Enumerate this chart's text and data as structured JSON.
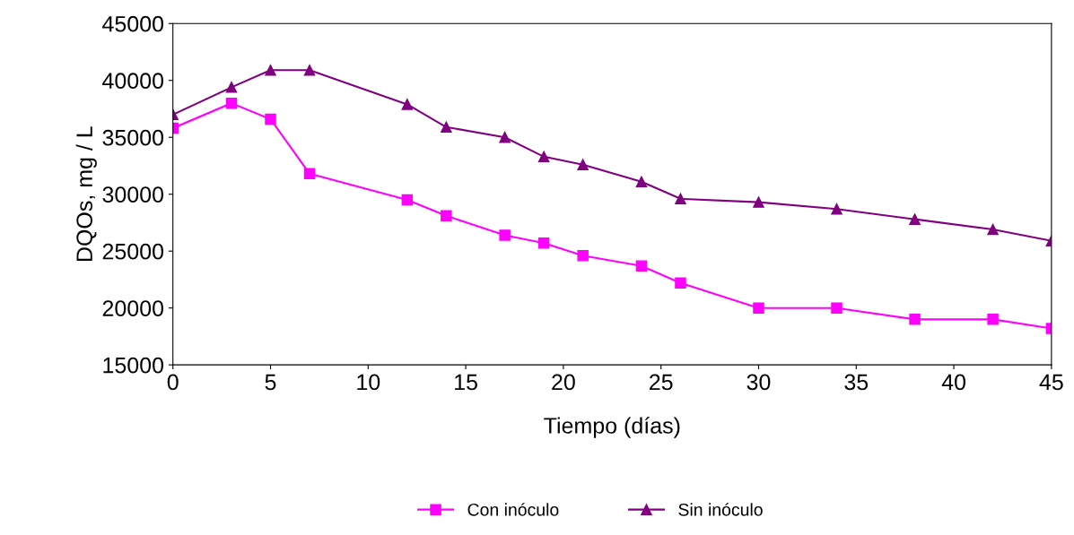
{
  "chart_data": {
    "type": "line",
    "xlabel": "Tiempo (días)",
    "ylabel": "DQOs, mg / L",
    "x": [
      0,
      3,
      5,
      7,
      12,
      14,
      17,
      19,
      21,
      24,
      26,
      30,
      34,
      38,
      42,
      45
    ],
    "series": [
      {
        "name": "Con inóculo",
        "color": "#ff00ff",
        "marker": "square",
        "values": [
          35800,
          38000,
          36600,
          31800,
          29500,
          28100,
          26400,
          25700,
          24600,
          23700,
          22200,
          20000,
          20000,
          19000,
          19000,
          18200
        ]
      },
      {
        "name": "Sin inóculo",
        "color": "#800080",
        "marker": "triangle",
        "values": [
          37000,
          39400,
          40900,
          40900,
          37900,
          35900,
          35000,
          33300,
          32600,
          31100,
          29600,
          29300,
          28700,
          27800,
          26900,
          25900
        ]
      }
    ],
    "xlim": [
      0,
      45
    ],
    "xticks": [
      0,
      5,
      10,
      15,
      20,
      25,
      30,
      35,
      40,
      45
    ],
    "ylim": [
      15000,
      45000
    ],
    "yticks": [
      15000,
      20000,
      25000,
      30000,
      35000,
      40000,
      45000
    ],
    "grid": false,
    "legend": "bottom",
    "line_style": "solid"
  }
}
